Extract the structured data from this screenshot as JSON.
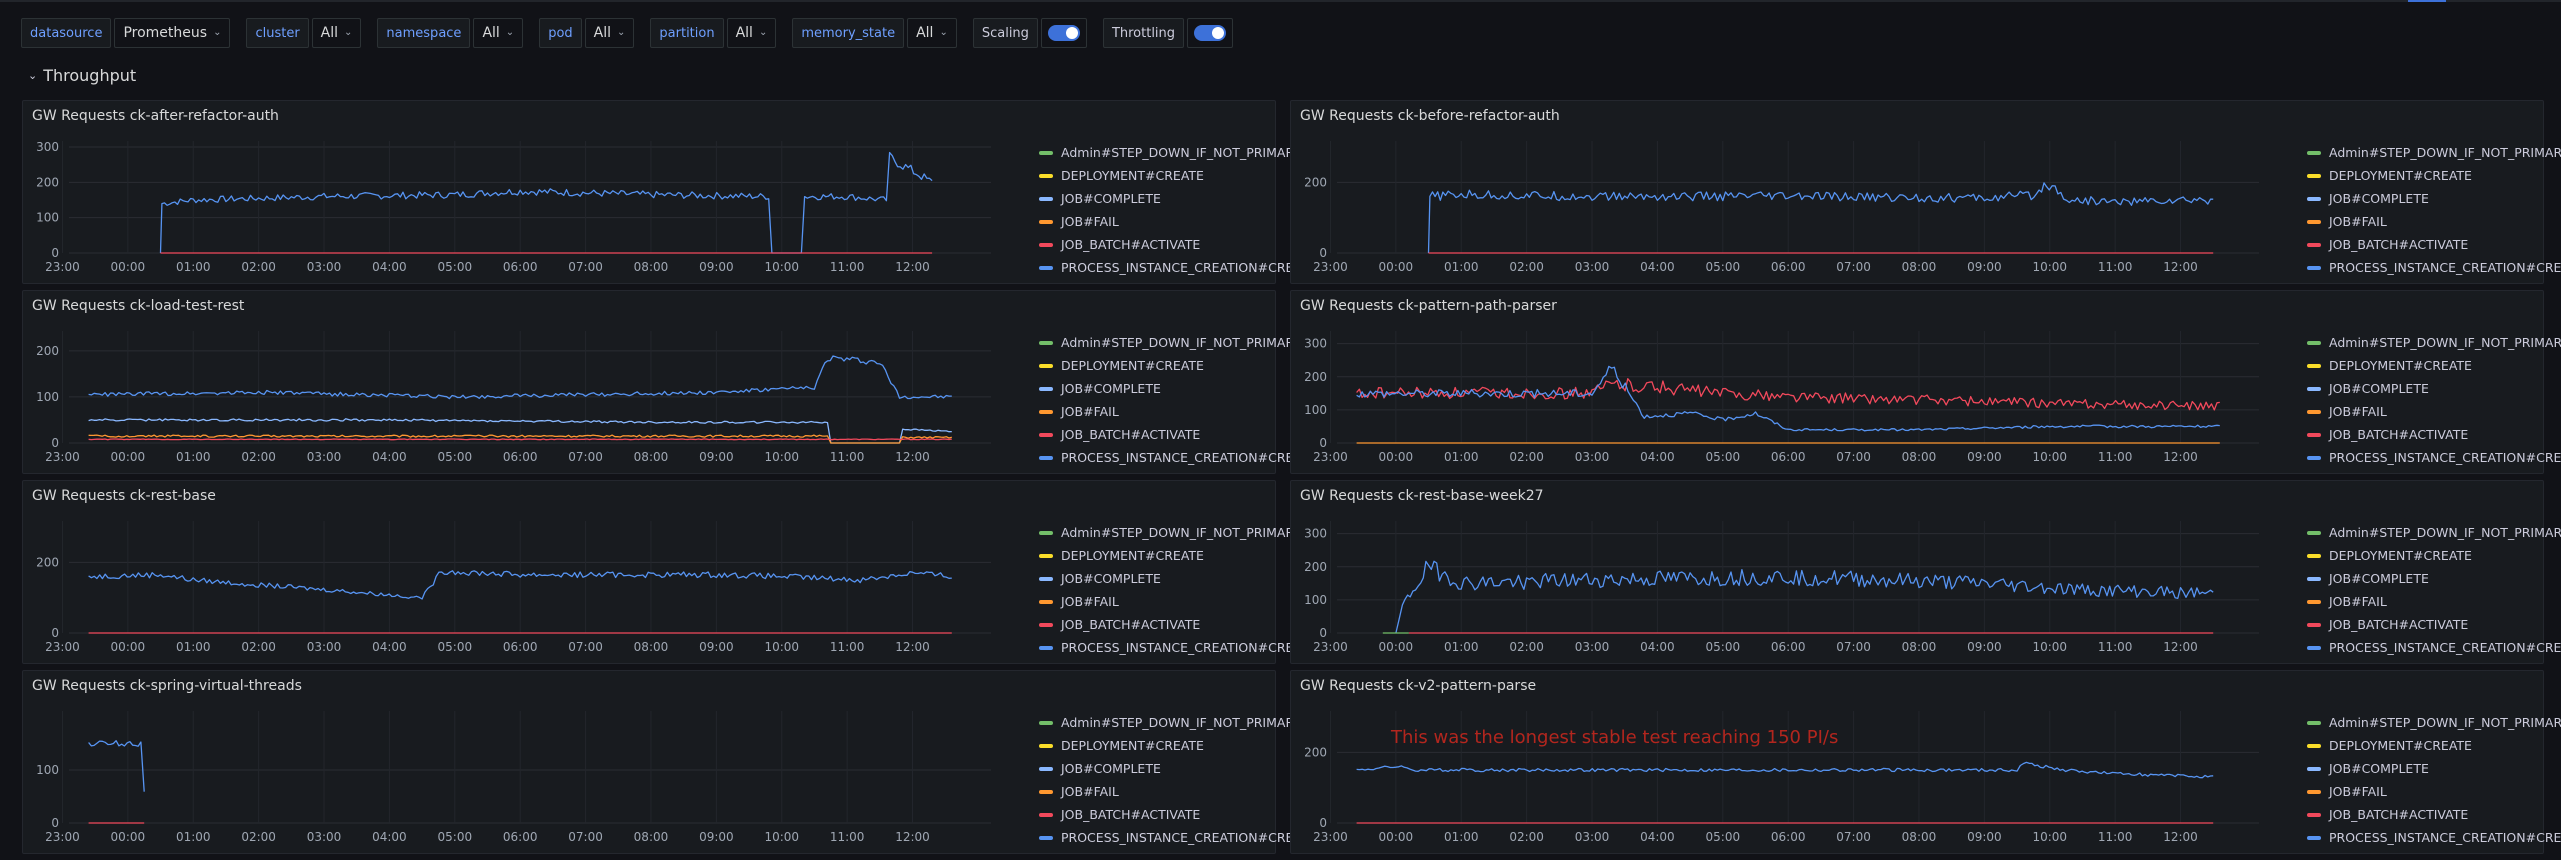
{
  "variables": [
    {
      "label": "datasource",
      "value": "Prometheus"
    },
    {
      "label": "cluster",
      "value": "All"
    },
    {
      "label": "namespace",
      "value": "All"
    },
    {
      "label": "pod",
      "value": "All"
    },
    {
      "label": "partition",
      "value": "All"
    },
    {
      "label": "memory_state",
      "value": "All"
    }
  ],
  "toggles": [
    {
      "label": "Scaling",
      "on": true
    },
    {
      "label": "Throttling",
      "on": true
    }
  ],
  "row": {
    "title": "Throughput"
  },
  "legend": [
    {
      "name": "Admin#STEP_DOWN_IF_NOT_PRIMARY",
      "color": "#73bf69"
    },
    {
      "name": "DEPLOYMENT#CREATE",
      "color": "#fade2a"
    },
    {
      "name": "JOB#COMPLETE",
      "color": "#8ab8ff"
    },
    {
      "name": "JOB#FAIL",
      "color": "#ff9830"
    },
    {
      "name": "JOB_BATCH#ACTIVATE",
      "color": "#f2495c"
    },
    {
      "name": "PROCESS_INSTANCE_CREATION#CREATE",
      "color": "#5794f2"
    }
  ],
  "panels": [
    {
      "title": "GW Requests ck-after-refactor-auth",
      "chart_data": {
        "type": "line",
        "x_ticks": [
          "23:00",
          "00:00",
          "01:00",
          "02:00",
          "03:00",
          "04:00",
          "05:00",
          "06:00",
          "07:00",
          "08:00",
          "09:00",
          "10:00",
          "11:00",
          "12:00"
        ],
        "y_ticks": [
          0,
          100,
          200,
          300
        ],
        "y_max": 300,
        "series": [
          {
            "name": "PROCESS_INSTANCE_CREATION#CREATE",
            "color": "#5794f2",
            "noise": 0.06,
            "points": [
              [
                0.5,
                0
              ],
              [
                0.52,
                140
              ],
              [
                1,
                150
              ],
              [
                3,
                160
              ],
              [
                5,
                165
              ],
              [
                6,
                175
              ],
              [
                7,
                170
              ],
              [
                8,
                165
              ],
              [
                9.8,
                160
              ],
              [
                9.85,
                0
              ],
              [
                10.3,
                0
              ],
              [
                10.35,
                160
              ],
              [
                11,
                160
              ],
              [
                11.6,
                150
              ],
              [
                11.65,
                270
              ],
              [
                12.3,
                200
              ]
            ]
          },
          {
            "name": "JOB_BATCH#ACTIVATE",
            "color": "#f2495c",
            "noise": 0,
            "points": [
              [
                0.5,
                0
              ],
              [
                12.3,
                0
              ]
            ]
          }
        ]
      }
    },
    {
      "title": "GW Requests ck-before-refactor-auth",
      "chart_data": {
        "type": "line",
        "x_ticks": [
          "23:00",
          "00:00",
          "01:00",
          "02:00",
          "03:00",
          "04:00",
          "05:00",
          "06:00",
          "07:00",
          "08:00",
          "09:00",
          "10:00",
          "11:00",
          "12:00"
        ],
        "y_ticks": [
          0,
          200
        ],
        "y_max": 300,
        "series": [
          {
            "name": "PROCESS_INSTANCE_CREATION#CREATE",
            "color": "#5794f2",
            "noise": 0.08,
            "points": [
              [
                0.5,
                0
              ],
              [
                0.52,
                160
              ],
              [
                1,
                165
              ],
              [
                3,
                160
              ],
              [
                6,
                160
              ],
              [
                9,
                155
              ],
              [
                9.8,
                165
              ],
              [
                9.95,
                200
              ],
              [
                10.3,
                150
              ],
              [
                11,
                145
              ],
              [
                12.5,
                150
              ]
            ]
          },
          {
            "name": "JOB_BATCH#ACTIVATE",
            "color": "#f2495c",
            "noise": 0,
            "points": [
              [
                0.5,
                0
              ],
              [
                12.5,
                0
              ]
            ]
          }
        ]
      }
    },
    {
      "title": "GW Requests ck-load-test-rest",
      "chart_data": {
        "type": "line",
        "x_ticks": [
          "23:00",
          "00:00",
          "01:00",
          "02:00",
          "03:00",
          "04:00",
          "05:00",
          "06:00",
          "07:00",
          "08:00",
          "09:00",
          "10:00",
          "11:00",
          "12:00"
        ],
        "y_ticks": [
          0,
          100,
          200
        ],
        "y_max": 230,
        "series": [
          {
            "name": "PROCESS_INSTANCE_CREATION#CREATE",
            "color": "#5794f2",
            "noise": 0.04,
            "points": [
              [
                -0.6,
                105
              ],
              [
                2,
                110
              ],
              [
                5,
                100
              ],
              [
                9,
                110
              ],
              [
                10.5,
                120
              ],
              [
                10.7,
                185
              ],
              [
                11.5,
                175
              ],
              [
                11.8,
                100
              ],
              [
                12.6,
                100
              ]
            ]
          },
          {
            "name": "JOB#COMPLETE",
            "color": "#8ab8ff",
            "noise": 0.05,
            "points": [
              [
                -0.6,
                50
              ],
              [
                4,
                50
              ],
              [
                8,
                45
              ],
              [
                10.7,
                45
              ],
              [
                10.75,
                0
              ],
              [
                11.8,
                0
              ],
              [
                11.85,
                30
              ],
              [
                12.6,
                25
              ]
            ]
          },
          {
            "name": "JOB#FAIL",
            "color": "#ff9830",
            "noise": 0.15,
            "points": [
              [
                -0.6,
                15
              ],
              [
                10.7,
                15
              ],
              [
                10.75,
                0
              ],
              [
                11.8,
                0
              ],
              [
                11.85,
                12
              ],
              [
                12.6,
                12
              ]
            ]
          },
          {
            "name": "JOB_BATCH#ACTIVATE",
            "color": "#f2495c",
            "noise": 0.1,
            "points": [
              [
                -0.6,
                8
              ],
              [
                12.6,
                8
              ]
            ]
          }
        ]
      }
    },
    {
      "title": "GW Requests ck-pattern-path-parser",
      "chart_data": {
        "type": "line",
        "x_ticks": [
          "23:00",
          "00:00",
          "01:00",
          "02:00",
          "03:00",
          "04:00",
          "05:00",
          "06:00",
          "07:00",
          "08:00",
          "09:00",
          "10:00",
          "11:00",
          "12:00"
        ],
        "y_ticks": [
          0,
          100,
          200,
          300
        ],
        "y_max": 320,
        "series": [
          {
            "name": "JOB_BATCH#ACTIVATE",
            "color": "#f2495c",
            "noise": 0.12,
            "points": [
              [
                -0.6,
                150
              ],
              [
                3,
                150
              ],
              [
                3.3,
                180
              ],
              [
                4,
                170
              ],
              [
                5,
                150
              ],
              [
                6,
                140
              ],
              [
                8,
                130
              ],
              [
                10,
                120
              ],
              [
                12.6,
                110
              ]
            ]
          },
          {
            "name": "PROCESS_INSTANCE_CREATION#CREATE",
            "color": "#5794f2",
            "noise": 0.08,
            "points": [
              [
                -0.6,
                150
              ],
              [
                3,
                150
              ],
              [
                3.3,
                230
              ],
              [
                3.8,
                80
              ],
              [
                4.5,
                90
              ],
              [
                5,
                70
              ],
              [
                5.5,
                90
              ],
              [
                6,
                40
              ],
              [
                8,
                40
              ],
              [
                10,
                50
              ],
              [
                12.6,
                50
              ]
            ]
          },
          {
            "name": "JOB#FAIL",
            "color": "#ff9830",
            "noise": 0,
            "points": [
              [
                -0.6,
                0
              ],
              [
                12.6,
                0
              ]
            ]
          }
        ]
      }
    },
    {
      "title": "GW Requests ck-rest-base",
      "chart_data": {
        "type": "line",
        "x_ticks": [
          "23:00",
          "00:00",
          "01:00",
          "02:00",
          "03:00",
          "04:00",
          "05:00",
          "06:00",
          "07:00",
          "08:00",
          "09:00",
          "10:00",
          "11:00",
          "12:00"
        ],
        "y_ticks": [
          0,
          200
        ],
        "y_max": 300,
        "series": [
          {
            "name": "PROCESS_INSTANCE_CREATION#CREATE",
            "color": "#5794f2",
            "noise": 0.05,
            "points": [
              [
                -0.6,
                160
              ],
              [
                0.5,
                165
              ],
              [
                1,
                150
              ],
              [
                3.2,
                120
              ],
              [
                4.5,
                100
              ],
              [
                4.8,
                175
              ],
              [
                6,
                165
              ],
              [
                9,
                165
              ],
              [
                10,
                160
              ],
              [
                11.2,
                150
              ],
              [
                12,
                170
              ],
              [
                12.6,
                160
              ]
            ]
          },
          {
            "name": "JOB_BATCH#ACTIVATE",
            "color": "#f2495c",
            "noise": 0,
            "points": [
              [
                -0.6,
                0
              ],
              [
                12.6,
                0
              ]
            ]
          }
        ]
      }
    },
    {
      "title": "GW Requests ck-rest-base-week27",
      "chart_data": {
        "type": "line",
        "x_ticks": [
          "23:00",
          "00:00",
          "01:00",
          "02:00",
          "03:00",
          "04:00",
          "05:00",
          "06:00",
          "07:00",
          "08:00",
          "09:00",
          "10:00",
          "11:00",
          "12:00"
        ],
        "y_ticks": [
          0,
          100,
          200,
          300
        ],
        "y_max": 320,
        "series": [
          {
            "name": "PROCESS_INSTANCE_CREATION#CREATE",
            "color": "#5794f2",
            "noise": 0.15,
            "points": [
              [
                0,
                0
              ],
              [
                0.1,
                80
              ],
              [
                0.5,
                200
              ],
              [
                1,
                150
              ],
              [
                3,
                160
              ],
              [
                6,
                170
              ],
              [
                9,
                150
              ],
              [
                10.5,
                130
              ],
              [
                12.5,
                120
              ]
            ]
          },
          {
            "name": "Admin#STEP_DOWN_IF_NOT_PRIMARY",
            "color": "#73bf69",
            "noise": 0,
            "points": [
              [
                -0.2,
                0
              ],
              [
                0.2,
                0
              ]
            ]
          },
          {
            "name": "JOB_BATCH#ACTIVATE",
            "color": "#f2495c",
            "noise": 0,
            "points": [
              [
                0.2,
                0
              ],
              [
                12.5,
                0
              ]
            ]
          }
        ]
      }
    },
    {
      "title": "GW Requests ck-spring-virtual-threads",
      "chart_data": {
        "type": "line",
        "x_ticks": [
          "23:00",
          "00:00",
          "01:00",
          "02:00",
          "03:00",
          "04:00",
          "05:00",
          "06:00",
          "07:00",
          "08:00",
          "09:00",
          "10:00",
          "11:00",
          "12:00"
        ],
        "y_ticks": [
          0,
          100
        ],
        "y_max": 200,
        "series": [
          {
            "name": "PROCESS_INSTANCE_CREATION#CREATE",
            "color": "#5794f2",
            "noise": 0.04,
            "points": [
              [
                -0.6,
                150
              ],
              [
                0.2,
                150
              ],
              [
                0.25,
                60
              ]
            ]
          },
          {
            "name": "JOB_BATCH#ACTIVATE",
            "color": "#f2495c",
            "noise": 0,
            "points": [
              [
                -0.6,
                0
              ],
              [
                0.25,
                0
              ]
            ]
          }
        ]
      }
    },
    {
      "title": "GW Requests ck-v2-pattern-parse",
      "annotation": "This was the longest stable test reaching 150 PI/s",
      "chart_data": {
        "type": "line",
        "x_ticks": [
          "23:00",
          "00:00",
          "01:00",
          "02:00",
          "03:00",
          "04:00",
          "05:00",
          "06:00",
          "07:00",
          "08:00",
          "09:00",
          "10:00",
          "11:00",
          "12:00"
        ],
        "y_ticks": [
          0,
          200
        ],
        "y_max": 300,
        "series": [
          {
            "name": "PROCESS_INSTANCE_CREATION#CREATE",
            "color": "#5794f2",
            "noise": 0.03,
            "points": [
              [
                -0.6,
                150
              ],
              [
                0,
                160
              ],
              [
                0.3,
                150
              ],
              [
                5,
                150
              ],
              [
                9.5,
                150
              ],
              [
                9.6,
                170
              ],
              [
                10.2,
                150
              ],
              [
                11,
                140
              ],
              [
                12.5,
                130
              ]
            ]
          },
          {
            "name": "JOB_BATCH#ACTIVATE",
            "color": "#f2495c",
            "noise": 0,
            "points": [
              [
                -0.6,
                0
              ],
              [
                12.5,
                0
              ]
            ]
          }
        ]
      }
    }
  ]
}
